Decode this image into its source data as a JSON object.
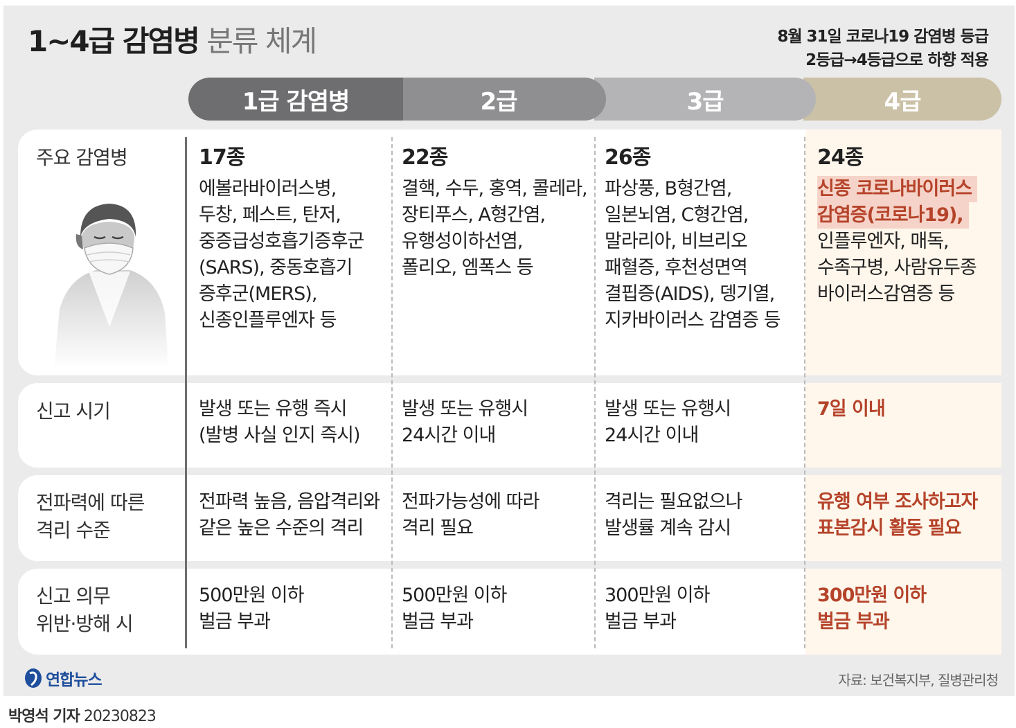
{
  "title": {
    "bold": "1~4급 감염병",
    "light": "분류 체계"
  },
  "note": [
    "8월 31일 코로나19 감염병 등급",
    "2등급→4등급으로 하향 적용"
  ],
  "grades": [
    "1급 감염병",
    "2급",
    "3급",
    "4급"
  ],
  "rows": {
    "diseases": {
      "label": "주요 감염병",
      "counts": [
        "17종",
        "22종",
        "26종",
        "24종"
      ],
      "g1": [
        "에볼라바이러스병,",
        "두창, 페스트, 탄저,",
        "중증급성호흡기증후군",
        "(SARS), 중동호흡기",
        "증후군(MERS),",
        "신종인플루엔자 등"
      ],
      "g2": [
        "결핵, 수두, 홍역, 콜레라,",
        "장티푸스, A형간염,",
        "유행성이하선염,",
        "폴리오, 엠폭스 등"
      ],
      "g3": [
        "파상풍, B형간염,",
        "일본뇌염, C형간염,",
        "말라리아, 비브리오",
        "패혈증, 후천성면역",
        "결핍증(AIDS), 뎅기열,",
        "지카바이러스 감염증 등"
      ],
      "g4_highlight": [
        "신종 코로나바이러스",
        "감염증(코로나19),"
      ],
      "g4": [
        "인플루엔자, 매독,",
        "수족구병, 사람유두종",
        "바이러스감염증 등"
      ]
    },
    "report_time": {
      "label": "신고 시기",
      "g1": [
        "발생 또는 유행 즉시",
        "(발병 사실 인지 즉시)"
      ],
      "g2": [
        "발생 또는 유행시",
        "24시간 이내"
      ],
      "g3": [
        "발생 또는 유행시",
        "24시간 이내"
      ],
      "g4": [
        "7일 이내"
      ]
    },
    "isolation": {
      "label": [
        "전파력에 따른",
        "격리 수준"
      ],
      "g1": [
        "전파력 높음, 음압격리와",
        "같은 높은 수준의 격리"
      ],
      "g2": [
        "전파가능성에 따라",
        "격리 필요"
      ],
      "g3": [
        "격리는 필요없으나",
        "발생률 계속 감시"
      ],
      "g4": [
        "유행 여부 조사하고자",
        "표본감시 활동 필요"
      ]
    },
    "penalty": {
      "label": [
        "신고 의무",
        "위반·방해 시"
      ],
      "g1": [
        "500만원 이하",
        "벌금 부과"
      ],
      "g2": [
        "500만원 이하",
        "벌금 부과"
      ],
      "g3": [
        "300만원 이하",
        "벌금 부과"
      ],
      "g4": [
        "300만원 이하",
        "벌금 부과"
      ]
    }
  },
  "logo": "연합뉴스",
  "source": "자료: 보건복지부, 질병관리청",
  "credit": {
    "name": "박영석 기자",
    "date": "20230823"
  },
  "colors": {
    "grade1": "#6e6e70",
    "grade2": "#8f8f91",
    "grade3": "#b4b4b6",
    "grade4": "#cbc1a6",
    "accent_red": "#b5432a",
    "highlight_bg": "#fff7ec"
  }
}
